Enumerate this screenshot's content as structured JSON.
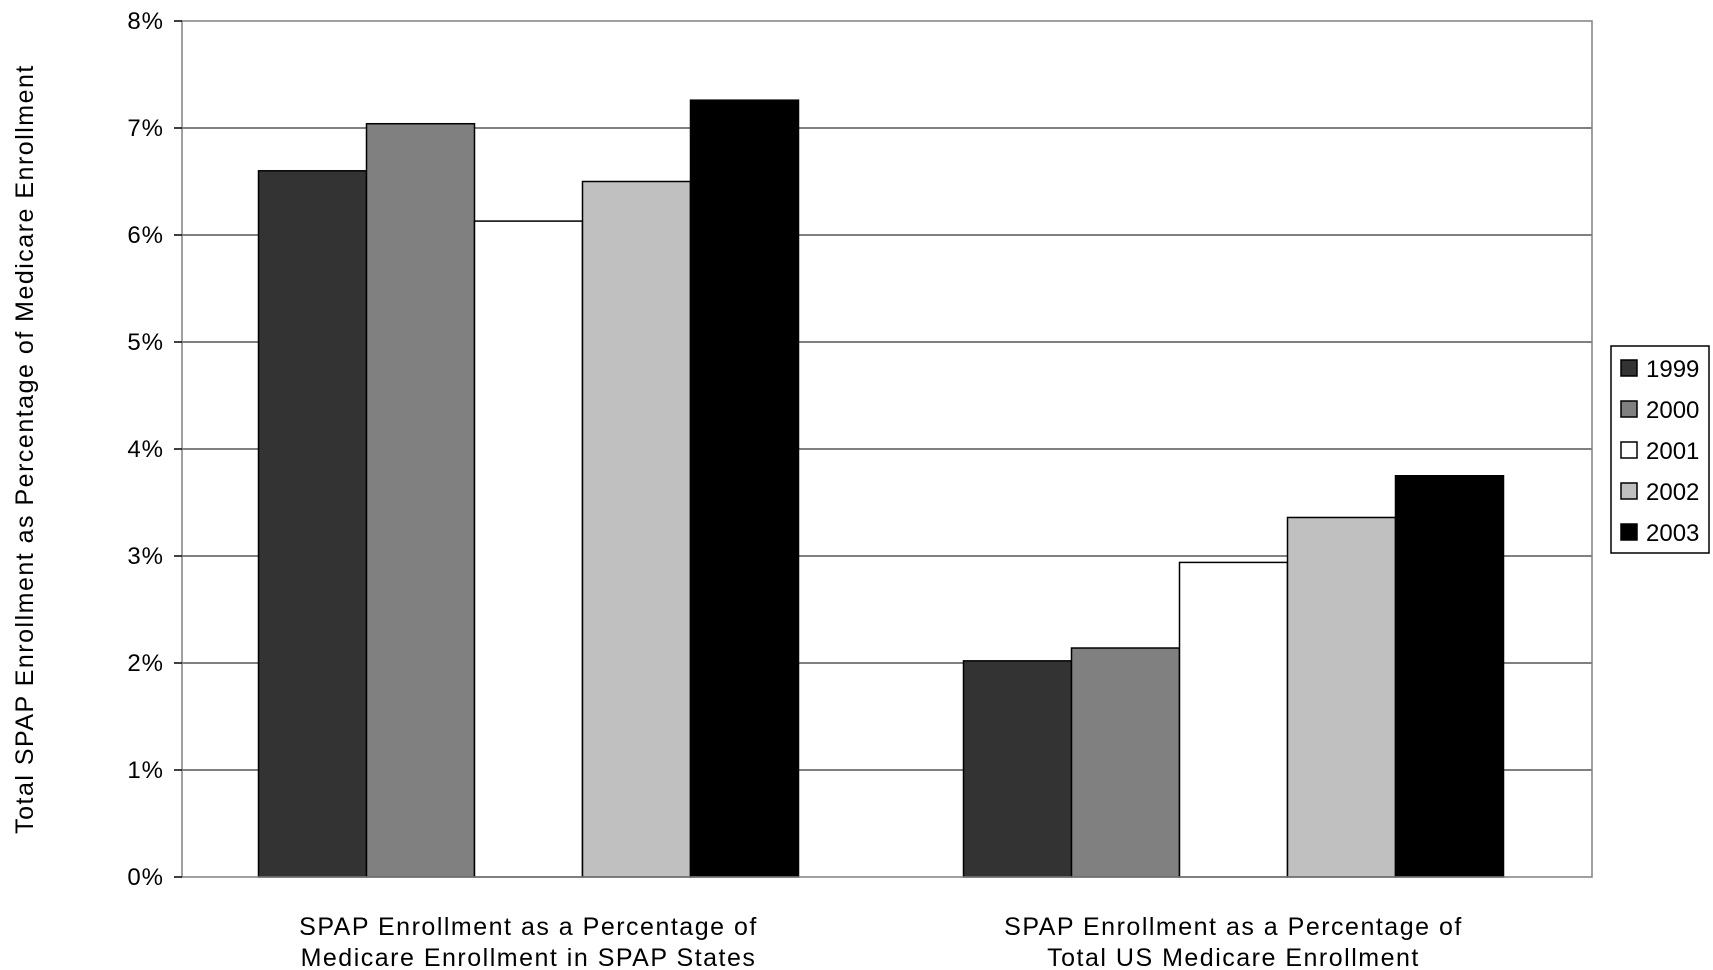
{
  "chart_data": {
    "type": "bar",
    "ylabel": "Total SPAP Enrollment as Percentage of Medicare Enrollment",
    "ylim": [
      0,
      8
    ],
    "yticks": [
      0,
      1,
      2,
      3,
      4,
      5,
      6,
      7,
      8
    ],
    "ytick_labels": [
      "0%",
      "1%",
      "2%",
      "3%",
      "4%",
      "5%",
      "6%",
      "7%",
      "8%"
    ],
    "grid": true,
    "legend_position": "right",
    "categories": [
      [
        "SPAP Enrollment as a Percentage of",
        "Medicare Enrollment in SPAP States"
      ],
      [
        "SPAP Enrollment as a Percentage of",
        "Total US Medicare Enrollment"
      ]
    ],
    "series": [
      {
        "name": "1999",
        "color": "#333333",
        "values": [
          6.6,
          2.02
        ]
      },
      {
        "name": "2000",
        "color": "#808080",
        "values": [
          7.04,
          2.14
        ]
      },
      {
        "name": "2001",
        "color": "#ffffff",
        "values": [
          6.13,
          2.94
        ]
      },
      {
        "name": "2002",
        "color": "#c0c0c0",
        "values": [
          6.5,
          3.36
        ]
      },
      {
        "name": "2003",
        "color": "#000000",
        "values": [
          7.26,
          3.75
        ]
      }
    ]
  }
}
